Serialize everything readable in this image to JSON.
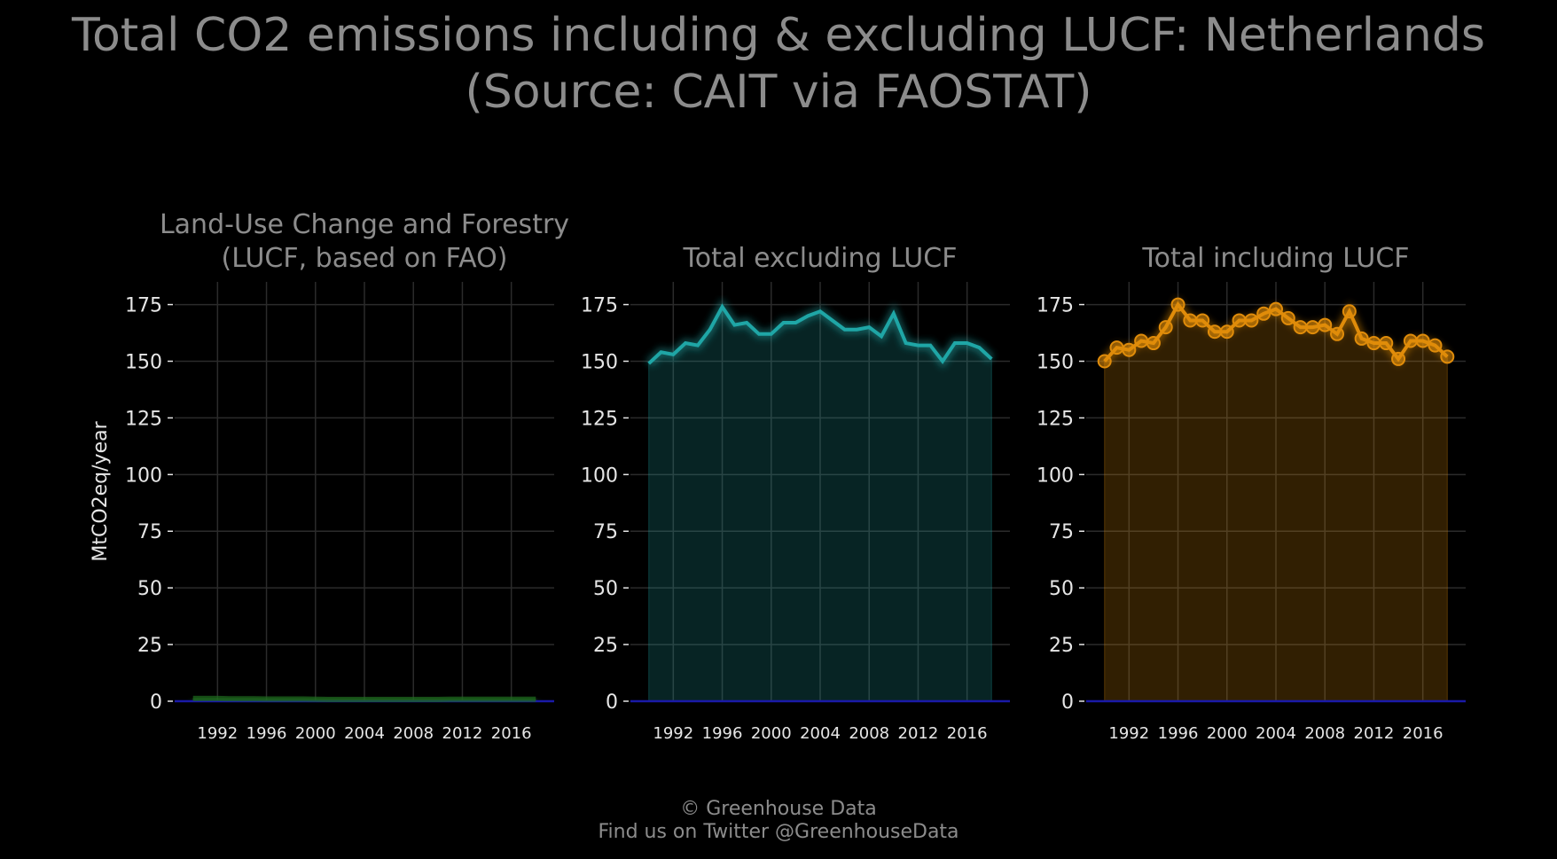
{
  "title": {
    "line1": "Total CO2 emissions including & excluding LUCF: Netherlands",
    "line2": "(Source: CAIT via FAOSTAT)"
  },
  "footer": {
    "line1": "© Greenhouse Data",
    "line2": "Find us on Twitter @GreenhouseData"
  },
  "colors": {
    "background": "#000000",
    "grid": "#2b2b2b",
    "text": "#8c8c8c",
    "tick_text": "#e6e6e6",
    "zero_line": "#1a1aa8"
  },
  "chart_data": [
    {
      "type": "area",
      "title": "Land-Use Change and Forestry\n(LUCF, based on FAO)",
      "ylabel": "MtCO2eq/year",
      "ylim": [
        0,
        185
      ],
      "yticks": [
        0,
        25,
        50,
        75,
        100,
        125,
        150,
        175
      ],
      "xlim": [
        1988.5,
        2019.5
      ],
      "xticks": [
        1992,
        1996,
        2000,
        2004,
        2008,
        2012,
        2016
      ],
      "grid": true,
      "color": "#1e6b1e",
      "markers": false,
      "x": [
        1990,
        1991,
        1992,
        1993,
        1994,
        1995,
        1996,
        1997,
        1998,
        1999,
        2000,
        2001,
        2002,
        2003,
        2004,
        2005,
        2006,
        2007,
        2008,
        2009,
        2010,
        2011,
        2012,
        2013,
        2014,
        2015,
        2016,
        2017,
        2018
      ],
      "values": [
        1.2,
        1.2,
        1.2,
        1.1,
        1.1,
        1.1,
        1.0,
        1.0,
        1.0,
        1.0,
        0.9,
        0.8,
        0.8,
        0.8,
        0.8,
        0.8,
        0.8,
        0.8,
        0.8,
        0.8,
        0.8,
        0.9,
        0.9,
        0.9,
        0.9,
        0.9,
        0.9,
        0.9,
        0.9
      ]
    },
    {
      "type": "area",
      "title": "Total excluding LUCF",
      "ylim": [
        0,
        185
      ],
      "yticks": [
        0,
        25,
        50,
        75,
        100,
        125,
        150,
        175
      ],
      "xlim": [
        1988.5,
        2019.5
      ],
      "xticks": [
        1992,
        1996,
        2000,
        2004,
        2008,
        2012,
        2016
      ],
      "grid": true,
      "color": "#1fa6a6",
      "markers": false,
      "x": [
        1990,
        1991,
        1992,
        1993,
        1994,
        1995,
        1996,
        1997,
        1998,
        1999,
        2000,
        2001,
        2002,
        2003,
        2004,
        2005,
        2006,
        2007,
        2008,
        2009,
        2010,
        2011,
        2012,
        2013,
        2014,
        2015,
        2016,
        2017,
        2018
      ],
      "values": [
        149,
        154,
        153,
        158,
        157,
        164,
        174,
        166,
        167,
        162,
        162,
        167,
        167,
        170,
        172,
        168,
        164,
        164,
        165,
        161,
        171,
        158,
        157,
        157,
        150,
        158,
        158,
        156,
        151
      ]
    },
    {
      "type": "area",
      "title": "Total including LUCF",
      "ylim": [
        0,
        185
      ],
      "yticks": [
        0,
        25,
        50,
        75,
        100,
        125,
        150,
        175
      ],
      "xlim": [
        1988.5,
        2019.5
      ],
      "xticks": [
        1992,
        1996,
        2000,
        2004,
        2008,
        2012,
        2016
      ],
      "grid": true,
      "color": "#e08c0a",
      "markers": true,
      "x": [
        1990,
        1991,
        1992,
        1993,
        1994,
        1995,
        1996,
        1997,
        1998,
        1999,
        2000,
        2001,
        2002,
        2003,
        2004,
        2005,
        2006,
        2007,
        2008,
        2009,
        2010,
        2011,
        2012,
        2013,
        2014,
        2015,
        2016,
        2017,
        2018
      ],
      "values": [
        150,
        156,
        155,
        159,
        158,
        165,
        175,
        168,
        168,
        163,
        163,
        168,
        168,
        171,
        173,
        169,
        165,
        165,
        166,
        162,
        172,
        160,
        158,
        158,
        151,
        159,
        159,
        157,
        152
      ]
    }
  ]
}
